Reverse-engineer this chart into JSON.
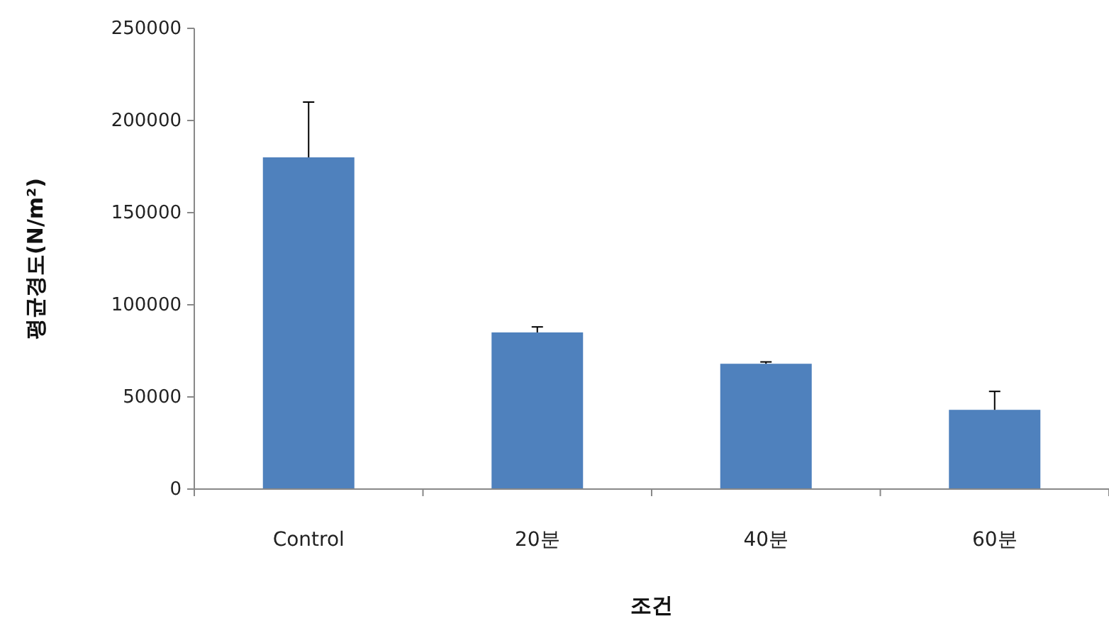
{
  "chart_data": {
    "type": "bar",
    "xlabel": "조건",
    "ylabel": "평균경도(N/m²)",
    "categories": [
      "Control",
      "20분",
      "40분",
      "60분"
    ],
    "values": [
      180000,
      85000,
      68000,
      43000
    ],
    "errors": [
      30000,
      3000,
      1000,
      10000
    ],
    "color": "#4f81bd",
    "ylim": [
      0,
      250000
    ],
    "yticks": [
      0,
      50000,
      100000,
      150000,
      200000,
      250000
    ],
    "grid": false
  }
}
